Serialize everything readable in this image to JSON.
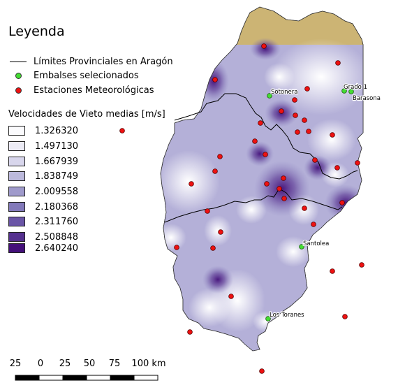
{
  "legend": {
    "title": "Leyenda",
    "items": [
      {
        "label": "Límites Provinciales en Aragón",
        "symbol": "line"
      },
      {
        "label": "Embalses selecionados",
        "symbol": "dot",
        "color": "#44dd33"
      },
      {
        "label": "Estaciones Meteorológicas",
        "symbol": "dot",
        "color": "#ee1111"
      }
    ],
    "ramp_title": "Velocidades de Vieto medias [m/s]",
    "ramp": [
      {
        "value": "1.326320",
        "color": "#fbfbfd"
      },
      {
        "value": "1.497130",
        "color": "#ecebf5"
      },
      {
        "value": "1.667939",
        "color": "#d8d6ec"
      },
      {
        "value": "1.838749",
        "color": "#bcb9dc"
      },
      {
        "value": "2.009558",
        "color": "#9f9acb"
      },
      {
        "value": "2.180368",
        "color": "#8279ba"
      },
      {
        "value": "2.311760",
        "color": "#6a55a6"
      },
      {
        "value": "2.508848",
        "color": "#55308f"
      },
      {
        "value": "2.640240",
        "color": "#44107a"
      }
    ]
  },
  "reservoirs": [
    {
      "name": "Sotonera"
    },
    {
      "name": "Grado 1"
    },
    {
      "name": "Barasona"
    },
    {
      "name": "Santolea"
    },
    {
      "name": "Los Toranes"
    }
  ],
  "scale_bar": {
    "labels": [
      "25",
      "0",
      "25",
      "50",
      "75",
      "100 km"
    ]
  },
  "colors": {
    "region_fill": "#ccb474",
    "boundary": "#000000",
    "reservoir": "#44dd33",
    "station": "#ee1111"
  }
}
